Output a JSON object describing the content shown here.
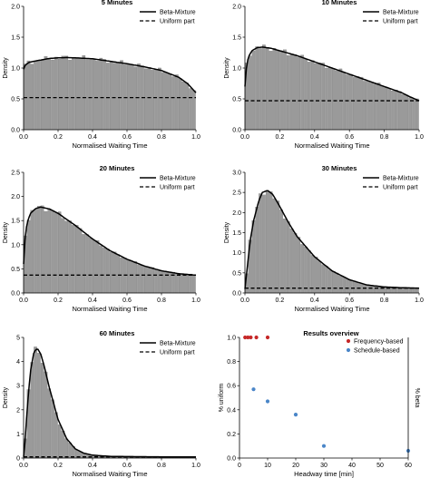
{
  "chart_data": [
    {
      "type": "histogram",
      "title": "5 Minutes",
      "xlabel": "Normalised Waiting Time",
      "ylabel": "Density",
      "xlim": [
        0,
        1
      ],
      "ylim": [
        0,
        2.0
      ],
      "xticks": [
        0.0,
        0.2,
        0.4,
        0.6,
        0.8,
        1.0
      ],
      "xtick_labels": [
        "0.0",
        "0.2",
        "0.4",
        "0.6",
        "0.8",
        "1.0"
      ],
      "yticks": [
        0.0,
        0.5,
        1.0,
        1.5,
        2.0
      ],
      "ytick_labels": [
        "0.0",
        "0.5",
        "1.0",
        "1.5",
        "2.0"
      ],
      "legend": [
        "Beta-Mixture",
        "Uniform part"
      ],
      "legend_position": "top-right",
      "uniform_level": 0.52,
      "curve": {
        "x": [
          0.0,
          0.01,
          0.03,
          0.06,
          0.1,
          0.15,
          0.2,
          0.25,
          0.3,
          0.4,
          0.5,
          0.6,
          0.7,
          0.8,
          0.9,
          0.95,
          1.0
        ],
        "y": [
          0.98,
          1.05,
          1.09,
          1.11,
          1.13,
          1.155,
          1.165,
          1.17,
          1.165,
          1.15,
          1.11,
          1.07,
          1.02,
          0.96,
          0.85,
          0.75,
          0.6
        ]
      }
    },
    {
      "type": "histogram",
      "title": "10 Minutes",
      "xlabel": "Normalised Waiting Time",
      "ylabel": "Density",
      "xlim": [
        0,
        1
      ],
      "ylim": [
        0,
        2.0
      ],
      "xticks": [
        0.0,
        0.2,
        0.4,
        0.6,
        0.8,
        1.0
      ],
      "xtick_labels": [
        "0.0",
        "0.2",
        "0.4",
        "0.6",
        "0.8",
        "1.0"
      ],
      "yticks": [
        0.0,
        0.5,
        1.0,
        1.5,
        2.0
      ],
      "ytick_labels": [
        "0.0",
        "0.5",
        "1.0",
        "1.5",
        "2.0"
      ],
      "legend": [
        "Beta-Mixture",
        "Uniform part"
      ],
      "legend_position": "top-right",
      "uniform_level": 0.47,
      "curve": {
        "x": [
          0.0,
          0.01,
          0.02,
          0.04,
          0.07,
          0.1,
          0.15,
          0.2,
          0.3,
          0.4,
          0.5,
          0.6,
          0.7,
          0.8,
          0.9,
          0.95,
          1.0
        ],
        "y": [
          0.7,
          1.05,
          1.18,
          1.28,
          1.33,
          1.34,
          1.32,
          1.28,
          1.2,
          1.1,
          1.0,
          0.9,
          0.8,
          0.7,
          0.6,
          0.53,
          0.47
        ]
      }
    },
    {
      "type": "histogram",
      "title": "20 Minutes",
      "xlabel": "Normalised Waiting Time",
      "ylabel": "Density",
      "xlim": [
        0,
        1
      ],
      "ylim": [
        0,
        2.5
      ],
      "xticks": [
        0.0,
        0.2,
        0.4,
        0.6,
        0.8,
        1.0
      ],
      "xtick_labels": [
        "0.0",
        "0.2",
        "0.4",
        "0.6",
        "0.8",
        "1.0"
      ],
      "yticks": [
        0.0,
        0.5,
        1.0,
        1.5,
        2.0,
        2.5
      ],
      "ytick_labels": [
        "0.0",
        "0.5",
        "1.0",
        "1.5",
        "2.0",
        "2.5"
      ],
      "legend": [
        "Beta-Mixture",
        "Uniform part"
      ],
      "legend_position": "top-right",
      "uniform_level": 0.37,
      "curve": {
        "x": [
          0.0,
          0.01,
          0.02,
          0.04,
          0.07,
          0.1,
          0.15,
          0.2,
          0.3,
          0.4,
          0.5,
          0.6,
          0.7,
          0.8,
          0.9,
          1.0
        ],
        "y": [
          0.6,
          1.2,
          1.45,
          1.65,
          1.75,
          1.78,
          1.74,
          1.65,
          1.4,
          1.12,
          0.88,
          0.7,
          0.56,
          0.46,
          0.4,
          0.37
        ]
      }
    },
    {
      "type": "histogram",
      "title": "30 Minutes",
      "xlabel": "Normalised Waiting Time",
      "ylabel": "Density",
      "xlim": [
        0,
        1
      ],
      "ylim": [
        0,
        3.0
      ],
      "xticks": [
        0.0,
        0.2,
        0.4,
        0.6,
        0.8,
        1.0
      ],
      "xtick_labels": [
        "0.0",
        "0.2",
        "0.4",
        "0.6",
        "0.8",
        "1.0"
      ],
      "yticks": [
        0.0,
        0.5,
        1.0,
        1.5,
        2.0,
        2.5,
        3.0
      ],
      "ytick_labels": [
        "0.0",
        "0.5",
        "1.0",
        "1.5",
        "2.0",
        "2.5",
        "3.0"
      ],
      "legend": [
        "Beta-Mixture",
        "Uniform part"
      ],
      "legend_position": "top-right",
      "uniform_level": 0.12,
      "curve": {
        "x": [
          0.0,
          0.01,
          0.03,
          0.05,
          0.08,
          0.1,
          0.13,
          0.16,
          0.2,
          0.25,
          0.3,
          0.4,
          0.5,
          0.6,
          0.7,
          0.8,
          0.9,
          1.0
        ],
        "y": [
          0.1,
          0.5,
          1.3,
          1.8,
          2.3,
          2.5,
          2.55,
          2.45,
          2.15,
          1.75,
          1.4,
          0.9,
          0.55,
          0.33,
          0.2,
          0.15,
          0.13,
          0.12
        ]
      }
    },
    {
      "type": "histogram",
      "title": "60 Minutes",
      "xlabel": "Normalised Waiting Time",
      "ylabel": "Density",
      "xlim": [
        0,
        1
      ],
      "ylim": [
        0,
        5
      ],
      "xticks": [
        0.0,
        0.2,
        0.4,
        0.6,
        0.8,
        1.0
      ],
      "xtick_labels": [
        "0.0",
        "0.2",
        "0.4",
        "0.6",
        "0.8",
        "1.0"
      ],
      "yticks": [
        0,
        1,
        2,
        3,
        4,
        5
      ],
      "ytick_labels": [
        "0",
        "1",
        "2",
        "3",
        "4",
        "5"
      ],
      "legend": [
        "Beta-Mixture",
        "Uniform part"
      ],
      "legend_position": "top-right",
      "uniform_level": 0.05,
      "curve": {
        "x": [
          0.0,
          0.01,
          0.02,
          0.04,
          0.06,
          0.08,
          0.1,
          0.12,
          0.15,
          0.2,
          0.25,
          0.3,
          0.35,
          0.4,
          0.5,
          0.6,
          0.8,
          1.0
        ],
        "y": [
          0.05,
          0.8,
          2.0,
          3.6,
          4.4,
          4.55,
          4.3,
          3.8,
          2.9,
          1.6,
          0.8,
          0.38,
          0.2,
          0.12,
          0.07,
          0.06,
          0.05,
          0.05
        ]
      }
    },
    {
      "type": "scatter",
      "title": "Results overview",
      "xlabel": "Headway time [min]",
      "ylabel": "% uniform",
      "ylabel_right": "% beta",
      "xlim": [
        0,
        60
      ],
      "ylim": [
        0,
        1.0
      ],
      "xticks": [
        0,
        10,
        20,
        30,
        40,
        50,
        60
      ],
      "xtick_labels": [
        "0",
        "10",
        "20",
        "30",
        "40",
        "50",
        "60"
      ],
      "yticks": [
        0.0,
        0.2,
        0.4,
        0.6,
        0.8,
        1.0
      ],
      "ytick_labels": [
        "0.0",
        "0.2",
        "0.4",
        "0.6",
        "0.8",
        "1.0"
      ],
      "legend_position": "top-right",
      "series": [
        {
          "name": "Frequency-based",
          "color": "#c62828",
          "x": [
            2,
            3,
            4,
            6,
            10
          ],
          "y": [
            1.0,
            1.0,
            1.0,
            1.0,
            1.0
          ]
        },
        {
          "name": "Schedule-based",
          "color": "#4a86c8",
          "x": [
            5,
            10,
            20,
            30,
            60
          ],
          "y": [
            0.57,
            0.47,
            0.36,
            0.1,
            0.06
          ]
        }
      ]
    }
  ]
}
